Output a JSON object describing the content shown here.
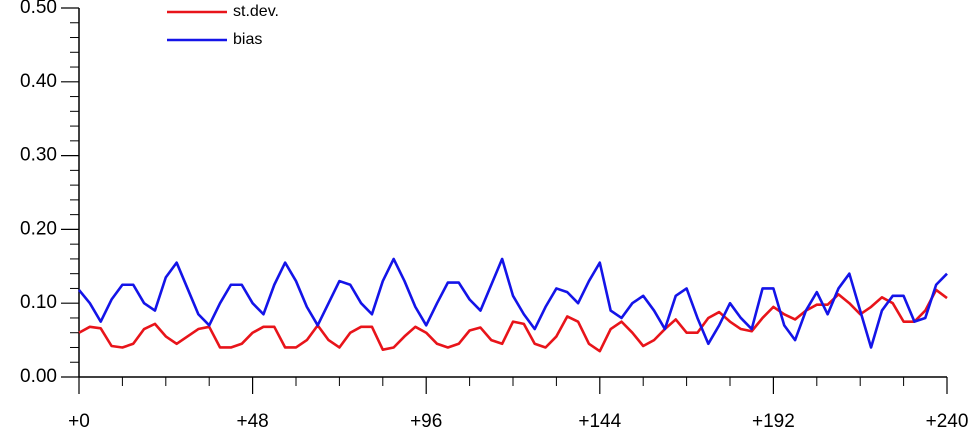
{
  "chart_data": {
    "type": "line",
    "x": [
      0,
      3,
      6,
      9,
      12,
      15,
      18,
      21,
      24,
      27,
      30,
      33,
      36,
      39,
      42,
      45,
      48,
      51,
      54,
      57,
      60,
      63,
      66,
      69,
      72,
      75,
      78,
      81,
      84,
      87,
      90,
      93,
      96,
      99,
      102,
      105,
      108,
      111,
      114,
      117,
      120,
      123,
      126,
      129,
      132,
      135,
      138,
      141,
      144,
      147,
      150,
      153,
      156,
      159,
      162,
      165,
      168,
      171,
      174,
      177,
      180,
      183,
      186,
      189,
      192,
      195,
      198,
      201,
      204,
      207,
      210,
      213,
      216,
      219,
      222,
      225,
      228,
      231,
      234,
      237,
      240
    ],
    "series": [
      {
        "name": "st.dev.",
        "color": "#e8141a",
        "values": [
          0.06,
          0.068,
          0.066,
          0.042,
          0.04,
          0.045,
          0.065,
          0.072,
          0.055,
          0.045,
          0.055,
          0.065,
          0.068,
          0.04,
          0.04,
          0.045,
          0.06,
          0.068,
          0.068,
          0.04,
          0.04,
          0.05,
          0.07,
          0.05,
          0.04,
          0.06,
          0.068,
          0.068,
          0.037,
          0.04,
          0.055,
          0.068,
          0.06,
          0.045,
          0.04,
          0.045,
          0.063,
          0.067,
          0.05,
          0.045,
          0.075,
          0.072,
          0.045,
          0.04,
          0.055,
          0.082,
          0.075,
          0.045,
          0.035,
          0.065,
          0.075,
          0.06,
          0.042,
          0.05,
          0.065,
          0.078,
          0.06,
          0.06,
          0.08,
          0.088,
          0.075,
          0.065,
          0.062,
          0.08,
          0.095,
          0.085,
          0.078,
          0.09,
          0.098,
          0.098,
          0.112,
          0.1,
          0.085,
          0.095,
          0.108,
          0.1,
          0.075,
          0.075,
          0.09,
          0.118,
          0.107
        ]
      },
      {
        "name": "bias",
        "color": "#1414e8",
        "values": [
          0.118,
          0.1,
          0.075,
          0.105,
          0.125,
          0.125,
          0.1,
          0.09,
          0.135,
          0.155,
          0.12,
          0.085,
          0.07,
          0.1,
          0.125,
          0.125,
          0.1,
          0.085,
          0.125,
          0.155,
          0.13,
          0.095,
          0.07,
          0.1,
          0.13,
          0.125,
          0.1,
          0.085,
          0.13,
          0.16,
          0.13,
          0.095,
          0.07,
          0.1,
          0.128,
          0.128,
          0.105,
          0.09,
          0.125,
          0.16,
          0.11,
          0.085,
          0.065,
          0.095,
          0.12,
          0.115,
          0.1,
          0.13,
          0.155,
          0.09,
          0.08,
          0.1,
          0.11,
          0.09,
          0.065,
          0.11,
          0.12,
          0.08,
          0.045,
          0.07,
          0.1,
          0.08,
          0.065,
          0.12,
          0.12,
          0.07,
          0.05,
          0.09,
          0.115,
          0.085,
          0.12,
          0.14,
          0.09,
          0.04,
          0.09,
          0.11,
          0.11,
          0.075,
          0.08,
          0.125,
          0.14
        ]
      }
    ],
    "xlim": [
      0,
      240
    ],
    "ylim": [
      0,
      0.5
    ],
    "xticks": [
      {
        "value": 0,
        "label": "+0"
      },
      {
        "value": 48,
        "label": "+48"
      },
      {
        "value": 96,
        "label": "+96"
      },
      {
        "value": 144,
        "label": "+144"
      },
      {
        "value": 192,
        "label": "+192"
      },
      {
        "value": 240,
        "label": "+240"
      }
    ],
    "yticks": [
      {
        "value": 0,
        "label": "0.00"
      },
      {
        "value": 0.1,
        "label": "0.10"
      },
      {
        "value": 0.2,
        "label": "0.20"
      },
      {
        "value": 0.3,
        "label": "0.30"
      },
      {
        "value": 0.4,
        "label": "0.40"
      },
      {
        "value": 0.5,
        "label": "0.50"
      }
    ],
    "xminorticks": [
      12,
      24,
      36,
      60,
      72,
      84,
      108,
      120,
      132,
      156,
      168,
      180,
      204,
      216,
      228
    ],
    "yminorticks": [
      0.02,
      0.04,
      0.06,
      0.08,
      0.12,
      0.14,
      0.16,
      0.18,
      0.22,
      0.24,
      0.26,
      0.28,
      0.32,
      0.34,
      0.36,
      0.38,
      0.42,
      0.44,
      0.46,
      0.48
    ]
  }
}
